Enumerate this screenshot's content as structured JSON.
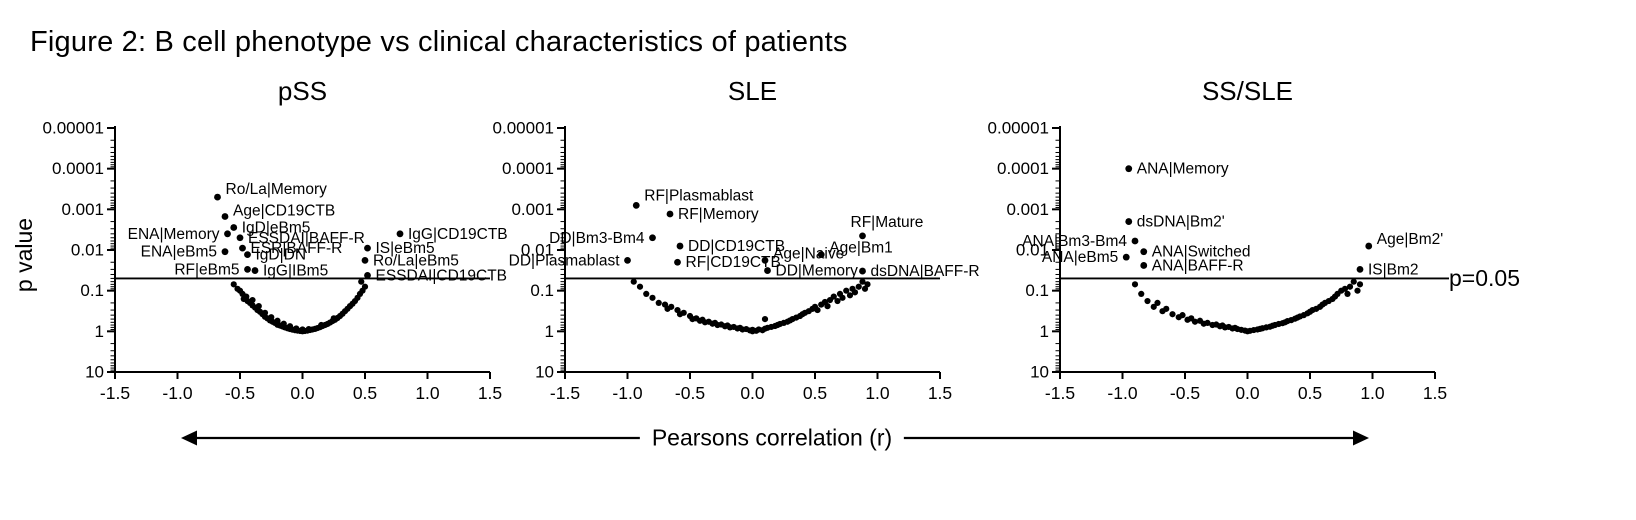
{
  "figure": {
    "title": "Figure 2: B cell phenotype vs clinical characteristics of patients"
  },
  "chart_data": {
    "type": "scatter",
    "axes": {
      "xlabel": "Pearsons correlation (r)",
      "ylabel": "p value",
      "xlim": [
        -1.5,
        1.5
      ],
      "x_ticks": [
        "-1.5",
        "-1.0",
        "-0.5",
        "0.0",
        "0.5",
        "1.0",
        "1.5"
      ],
      "y_tick_labels": [
        "0.00001",
        "0.0001",
        "0.001",
        "0.01",
        "0.1",
        "1",
        "10"
      ],
      "y_scale": "log10_inverted_p_value",
      "ylim": [
        1e-05,
        10
      ],
      "threshold": {
        "p": 0.05,
        "label": "p=0.05"
      }
    },
    "panels": [
      {
        "title": "pSS",
        "labeled_points": [
          {
            "label": "Ro/La|Memory",
            "r": -0.68,
            "p": 0.0005,
            "side": "right",
            "dy": -3
          },
          {
            "label": "Age|CD19CTB",
            "r": -0.62,
            "p": 0.0015,
            "side": "right",
            "dy": -1
          },
          {
            "label": "ENA|Memory",
            "r": -0.6,
            "p": 0.004,
            "side": "left"
          },
          {
            "label": "IgD|eBm5",
            "r": -0.55,
            "p": 0.0028,
            "side": "right"
          },
          {
            "label": "ESSDAI|BAFF-R",
            "r": -0.5,
            "p": 0.005,
            "side": "right"
          },
          {
            "label": "ESR|BAFF-R",
            "r": -0.48,
            "p": 0.009,
            "side": "right"
          },
          {
            "label": "ENA|eBm5",
            "r": -0.62,
            "p": 0.011,
            "side": "left"
          },
          {
            "label": "IgD|DN",
            "r": -0.44,
            "p": 0.013,
            "side": "right"
          },
          {
            "label": "RF|eBm5",
            "r": -0.44,
            "p": 0.03,
            "side": "left"
          },
          {
            "label": "IgG|IBm5",
            "r": -0.38,
            "p": 0.032,
            "side": "right"
          },
          {
            "label": "IgG|CD19CTB",
            "r": 0.78,
            "p": 0.004,
            "side": "right"
          },
          {
            "label": "IS|eBm5",
            "r": 0.52,
            "p": 0.009,
            "side": "right"
          },
          {
            "label": "Ro/La|eBm5",
            "r": 0.5,
            "p": 0.018,
            "side": "right"
          },
          {
            "label": "ESSDAI|CD19CTB",
            "r": 0.52,
            "p": 0.042,
            "side": "right"
          }
        ],
        "cloud_points": [
          [
            -0.55,
            0.07
          ],
          [
            -0.52,
            0.09
          ],
          [
            -0.5,
            0.1
          ],
          [
            -0.48,
            0.12
          ],
          [
            -0.47,
            0.16
          ],
          [
            -0.45,
            0.14
          ],
          [
            -0.44,
            0.18
          ],
          [
            -0.42,
            0.2
          ],
          [
            -0.4,
            0.23
          ],
          [
            -0.4,
            0.17
          ],
          [
            -0.38,
            0.26
          ],
          [
            -0.36,
            0.3
          ],
          [
            -0.35,
            0.24
          ],
          [
            -0.34,
            0.33
          ],
          [
            -0.32,
            0.38
          ],
          [
            -0.3,
            0.44
          ],
          [
            -0.3,
            0.35
          ],
          [
            -0.28,
            0.48
          ],
          [
            -0.26,
            0.54
          ],
          [
            -0.25,
            0.45
          ],
          [
            -0.24,
            0.58
          ],
          [
            -0.22,
            0.62
          ],
          [
            -0.2,
            0.69
          ],
          [
            -0.2,
            0.55
          ],
          [
            -0.18,
            0.72
          ],
          [
            -0.16,
            0.76
          ],
          [
            -0.15,
            0.65
          ],
          [
            -0.14,
            0.8
          ],
          [
            -0.12,
            0.84
          ],
          [
            -0.1,
            0.88
          ],
          [
            -0.1,
            0.75
          ],
          [
            -0.08,
            0.91
          ],
          [
            -0.06,
            0.94
          ],
          [
            -0.05,
            0.85
          ],
          [
            -0.04,
            0.96
          ],
          [
            -0.02,
            0.98
          ],
          [
            0.0,
            1.0
          ],
          [
            0.0,
            0.9
          ],
          [
            0.02,
            0.98
          ],
          [
            0.04,
            0.96
          ],
          [
            0.05,
            0.88
          ],
          [
            0.06,
            0.93
          ],
          [
            0.08,
            0.9
          ],
          [
            0.1,
            0.87
          ],
          [
            0.12,
            0.83
          ],
          [
            0.14,
            0.79
          ],
          [
            0.15,
            0.7
          ],
          [
            0.16,
            0.74
          ],
          [
            0.18,
            0.7
          ],
          [
            0.2,
            0.66
          ],
          [
            0.22,
            0.61
          ],
          [
            0.24,
            0.56
          ],
          [
            0.25,
            0.48
          ],
          [
            0.26,
            0.52
          ],
          [
            0.28,
            0.47
          ],
          [
            0.3,
            0.42
          ],
          [
            0.32,
            0.37
          ],
          [
            0.34,
            0.32
          ],
          [
            0.36,
            0.28
          ],
          [
            0.38,
            0.24
          ],
          [
            0.4,
            0.21
          ],
          [
            0.42,
            0.18
          ],
          [
            0.44,
            0.15
          ],
          [
            0.46,
            0.12
          ],
          [
            0.48,
            0.1
          ],
          [
            0.5,
            0.08
          ],
          [
            0.47,
            0.06
          ]
        ]
      },
      {
        "title": "SLE",
        "labeled_points": [
          {
            "label": "RF|Plasmablast",
            "r": -0.93,
            "p": 0.0008,
            "side": "right",
            "dy": -5
          },
          {
            "label": "RF|Memory",
            "r": -0.66,
            "p": 0.0013,
            "side": "right"
          },
          {
            "label": "DD|Bm3-Bm4",
            "r": -0.8,
            "p": 0.005,
            "side": "left"
          },
          {
            "label": "DD|CD19CTB",
            "r": -0.58,
            "p": 0.008,
            "side": "right"
          },
          {
            "label": "DD|Plasmablast",
            "r": -1.0,
            "p": 0.018,
            "side": "left"
          },
          {
            "label": "RF|CD19CTB",
            "r": -0.6,
            "p": 0.02,
            "side": "right"
          },
          {
            "label": "Age|Naive",
            "r": 0.1,
            "p": 0.018,
            "side": "right",
            "dy": -2
          },
          {
            "label": "DD|Memory",
            "r": 0.12,
            "p": 0.032,
            "side": "right"
          },
          {
            "label": "Age|Bm1",
            "r": 0.55,
            "p": 0.013,
            "side": "right",
            "dy": -2
          },
          {
            "label": "RF|Mature",
            "r": 0.88,
            "p": 0.0045,
            "side": "right",
            "dx": -20,
            "dy": -9
          },
          {
            "label": "dsDNA|BAFF-R",
            "r": 0.88,
            "p": 0.033,
            "side": "right"
          }
        ],
        "cloud_points": [
          [
            -0.95,
            0.06
          ],
          [
            -0.9,
            0.08
          ],
          [
            -0.85,
            0.12
          ],
          [
            -0.8,
            0.15
          ],
          [
            -0.75,
            0.2
          ],
          [
            -0.7,
            0.22
          ],
          [
            -0.68,
            0.28
          ],
          [
            -0.65,
            0.25
          ],
          [
            -0.6,
            0.3
          ],
          [
            -0.58,
            0.38
          ],
          [
            -0.55,
            0.35
          ],
          [
            -0.5,
            0.42
          ],
          [
            -0.48,
            0.5
          ],
          [
            -0.45,
            0.48
          ],
          [
            -0.42,
            0.55
          ],
          [
            -0.4,
            0.52
          ],
          [
            -0.38,
            0.6
          ],
          [
            -0.35,
            0.58
          ],
          [
            -0.32,
            0.65
          ],
          [
            -0.3,
            0.62
          ],
          [
            -0.28,
            0.7
          ],
          [
            -0.25,
            0.68
          ],
          [
            -0.22,
            0.75
          ],
          [
            -0.2,
            0.72
          ],
          [
            -0.18,
            0.8
          ],
          [
            -0.15,
            0.78
          ],
          [
            -0.12,
            0.85
          ],
          [
            -0.1,
            0.82
          ],
          [
            -0.08,
            0.9
          ],
          [
            -0.05,
            0.88
          ],
          [
            -0.02,
            0.95
          ],
          [
            0.0,
            1.0
          ],
          [
            0.0,
            0.92
          ],
          [
            0.03,
            0.97
          ],
          [
            0.05,
            0.9
          ],
          [
            0.08,
            0.94
          ],
          [
            0.1,
            0.86
          ],
          [
            0.1,
            0.5
          ],
          [
            0.12,
            0.82
          ],
          [
            0.15,
            0.78
          ],
          [
            0.18,
            0.74
          ],
          [
            0.2,
            0.7
          ],
          [
            0.22,
            0.66
          ],
          [
            0.25,
            0.62
          ],
          [
            0.28,
            0.58
          ],
          [
            0.3,
            0.54
          ],
          [
            0.32,
            0.5
          ],
          [
            0.35,
            0.46
          ],
          [
            0.38,
            0.42
          ],
          [
            0.4,
            0.38
          ],
          [
            0.42,
            0.35
          ],
          [
            0.45,
            0.32
          ],
          [
            0.48,
            0.28
          ],
          [
            0.5,
            0.25
          ],
          [
            0.52,
            0.3
          ],
          [
            0.55,
            0.22
          ],
          [
            0.58,
            0.19
          ],
          [
            0.6,
            0.24
          ],
          [
            0.62,
            0.17
          ],
          [
            0.65,
            0.14
          ],
          [
            0.68,
            0.18
          ],
          [
            0.7,
            0.12
          ],
          [
            0.72,
            0.15
          ],
          [
            0.75,
            0.1
          ],
          [
            0.78,
            0.13
          ],
          [
            0.8,
            0.09
          ],
          [
            0.82,
            0.11
          ],
          [
            0.85,
            0.08
          ],
          [
            0.88,
            0.06
          ],
          [
            0.9,
            0.09
          ],
          [
            0.92,
            0.07
          ]
        ]
      },
      {
        "title": "SS/SLE",
        "labeled_points": [
          {
            "label": "ANA|Memory",
            "r": -0.95,
            "p": 0.0001,
            "side": "right"
          },
          {
            "label": "dsDNA|Bm2'",
            "r": -0.95,
            "p": 0.002,
            "side": "right"
          },
          {
            "label": "ANA|Bm3-Bm4",
            "r": -0.9,
            "p": 0.006,
            "side": "left"
          },
          {
            "label": "ANA|Switched",
            "r": -0.83,
            "p": 0.011,
            "side": "right"
          },
          {
            "label": "ANA|eBm5",
            "r": -0.97,
            "p": 0.015,
            "side": "left"
          },
          {
            "label": "ANA|BAFF-R",
            "r": -0.83,
            "p": 0.024,
            "side": "right"
          },
          {
            "label": "Age|Bm2'",
            "r": 0.97,
            "p": 0.008,
            "side": "right",
            "dy": -2
          },
          {
            "label": "IS|Bm2",
            "r": 0.9,
            "p": 0.03,
            "side": "right"
          }
        ],
        "cloud_points": [
          [
            -0.9,
            0.07
          ],
          [
            -0.85,
            0.12
          ],
          [
            -0.8,
            0.18
          ],
          [
            -0.75,
            0.25
          ],
          [
            -0.72,
            0.2
          ],
          [
            -0.68,
            0.32
          ],
          [
            -0.65,
            0.28
          ],
          [
            -0.6,
            0.38
          ],
          [
            -0.55,
            0.45
          ],
          [
            -0.52,
            0.4
          ],
          [
            -0.48,
            0.52
          ],
          [
            -0.45,
            0.48
          ],
          [
            -0.42,
            0.58
          ],
          [
            -0.38,
            0.55
          ],
          [
            -0.35,
            0.65
          ],
          [
            -0.32,
            0.62
          ],
          [
            -0.28,
            0.7
          ],
          [
            -0.25,
            0.68
          ],
          [
            -0.22,
            0.75
          ],
          [
            -0.2,
            0.72
          ],
          [
            -0.18,
            0.8
          ],
          [
            -0.15,
            0.78
          ],
          [
            -0.12,
            0.85
          ],
          [
            -0.1,
            0.82
          ],
          [
            -0.08,
            0.88
          ],
          [
            -0.05,
            0.92
          ],
          [
            -0.02,
            0.96
          ],
          [
            0.0,
            1.0
          ],
          [
            0.02,
            0.97
          ],
          [
            0.05,
            0.93
          ],
          [
            0.08,
            0.9
          ],
          [
            0.1,
            0.87
          ],
          [
            0.12,
            0.84
          ],
          [
            0.15,
            0.8
          ],
          [
            0.18,
            0.77
          ],
          [
            0.2,
            0.73
          ],
          [
            0.22,
            0.7
          ],
          [
            0.25,
            0.66
          ],
          [
            0.28,
            0.63
          ],
          [
            0.3,
            0.6
          ],
          [
            0.32,
            0.56
          ],
          [
            0.35,
            0.53
          ],
          [
            0.38,
            0.49
          ],
          [
            0.4,
            0.46
          ],
          [
            0.42,
            0.43
          ],
          [
            0.45,
            0.4
          ],
          [
            0.48,
            0.36
          ],
          [
            0.5,
            0.33
          ],
          [
            0.52,
            0.3
          ],
          [
            0.55,
            0.28
          ],
          [
            0.58,
            0.25
          ],
          [
            0.6,
            0.22
          ],
          [
            0.62,
            0.2
          ],
          [
            0.65,
            0.18
          ],
          [
            0.68,
            0.16
          ],
          [
            0.7,
            0.14
          ],
          [
            0.72,
            0.12
          ],
          [
            0.75,
            0.1
          ],
          [
            0.78,
            0.09
          ],
          [
            0.8,
            0.12
          ],
          [
            0.82,
            0.08
          ],
          [
            0.85,
            0.06
          ],
          [
            0.88,
            0.1
          ],
          [
            0.9,
            0.07
          ]
        ]
      }
    ]
  }
}
